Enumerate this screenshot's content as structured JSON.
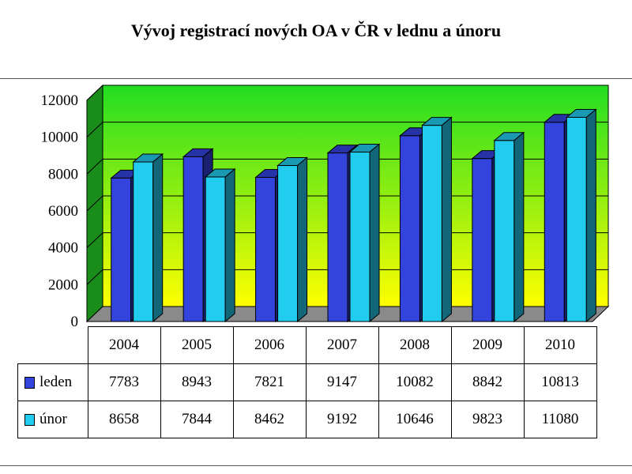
{
  "chart_data": {
    "type": "bar",
    "title": "Vývoj registrací nových OA v ČR v lednu a únoru",
    "categories": [
      "2004",
      "2005",
      "2006",
      "2007",
      "2008",
      "2009",
      "2010"
    ],
    "series": [
      {
        "name": "leden",
        "color": "#3344dd",
        "values": [
          7783,
          8943,
          7821,
          9147,
          10082,
          8842,
          10813
        ]
      },
      {
        "name": "únor",
        "color": "#22ccee",
        "values": [
          8658,
          7844,
          8462,
          9192,
          10646,
          9823,
          11080
        ]
      }
    ],
    "ylim": [
      0,
      12000
    ],
    "yticks": [
      "0",
      "2000",
      "4000",
      "6000",
      "8000",
      "10000",
      "12000"
    ],
    "xlabel": "",
    "ylabel": "",
    "grid": true,
    "data_table": true,
    "background": [
      "#22dd22",
      "#ffff00"
    ]
  }
}
